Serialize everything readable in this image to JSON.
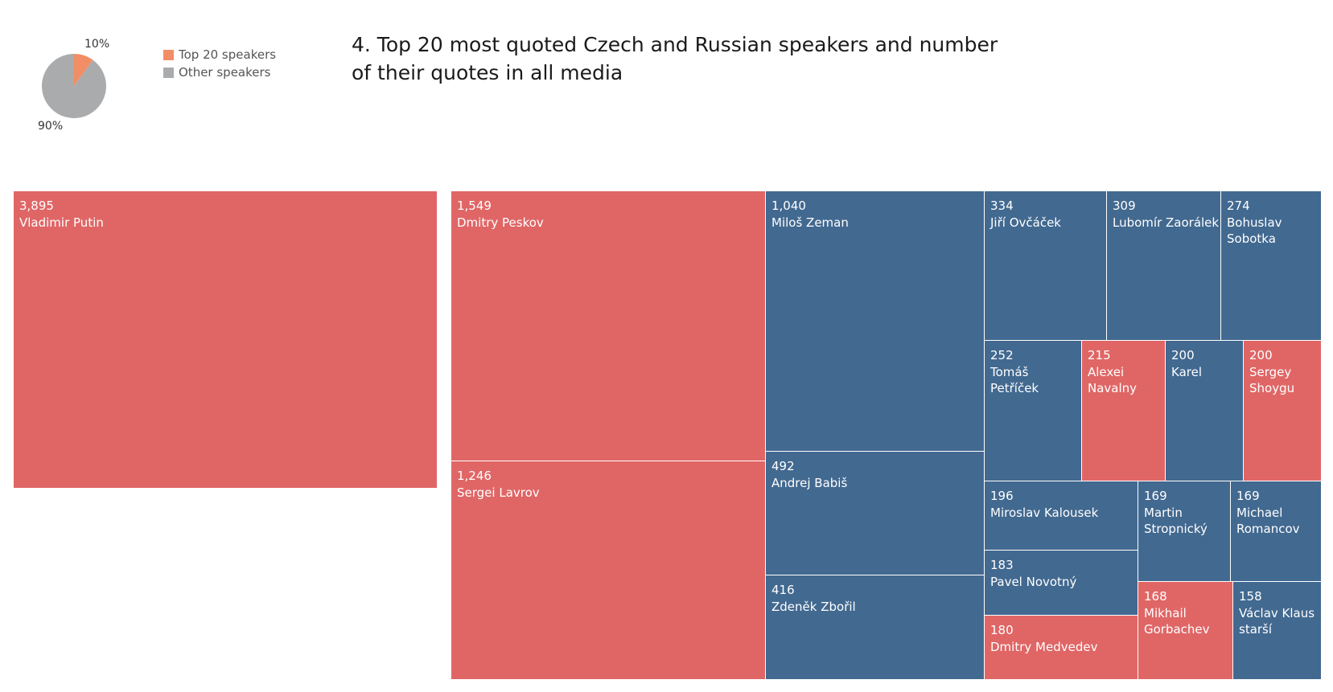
{
  "title": "4. Top 20 most quoted Czech and Russian speakers and number of their quotes in all media",
  "colors": {
    "russian": "#e06666",
    "czech": "#426990",
    "legend_top": "#f28e66",
    "legend_other": "#a9abad"
  },
  "pie": {
    "slices": [
      {
        "label": "10%",
        "value": 10,
        "color": "#f28e66"
      },
      {
        "label": "90%",
        "value": 90,
        "color": "#a9abad"
      }
    ]
  },
  "legend": [
    {
      "label": "Top 20 speakers",
      "color": "#f28e66"
    },
    {
      "label": "Other speakers",
      "color": "#a9abad"
    }
  ],
  "chart_data": [
    {
      "type": "pie",
      "categories": [
        "Top 20 speakers",
        "Other speakers"
      ],
      "values": [
        10,
        90
      ]
    },
    {
      "type": "treemap",
      "items": [
        {
          "value": "3,895",
          "name": "Vladimir Putin",
          "group": "russian"
        },
        {
          "value": "1,549",
          "name": "Dmitry Peskov",
          "group": "russian"
        },
        {
          "value": "1,246",
          "name": "Sergei Lavrov",
          "group": "russian"
        },
        {
          "value": "1,040",
          "name": "Miloš Zeman",
          "group": "czech"
        },
        {
          "value": "492",
          "name": "Andrej Babiš",
          "group": "czech"
        },
        {
          "value": "416",
          "name": "Zdeněk Zbořil",
          "group": "czech"
        },
        {
          "value": "334",
          "name": "Jiří Ovčáček",
          "group": "czech"
        },
        {
          "value": "309",
          "name": "Lubomír Zaorálek",
          "group": "czech"
        },
        {
          "value": "274",
          "name": "Bohuslav Sobotka",
          "group": "czech"
        },
        {
          "value": "252",
          "name": "Tomáš Petříček",
          "group": "czech"
        },
        {
          "value": "215",
          "name": "Alexei Navalny",
          "group": "russian"
        },
        {
          "value": "200",
          "name": "Karel",
          "group": "czech"
        },
        {
          "value": "200",
          "name": "Sergey Shoygu",
          "group": "russian"
        },
        {
          "value": "196",
          "name": "Miroslav Kalousek",
          "group": "czech"
        },
        {
          "value": "169",
          "name": "Martin Stropnický",
          "group": "czech"
        },
        {
          "value": "169",
          "name": "Michael Romancov",
          "group": "czech"
        },
        {
          "value": "183",
          "name": "Pavel Novotný",
          "group": "czech"
        },
        {
          "value": "180",
          "name": "Dmitry Medvedev",
          "group": "russian"
        },
        {
          "value": "168",
          "name": "Mikhail Gorbachev",
          "group": "russian"
        },
        {
          "value": "158",
          "name": "Václav Klaus starší",
          "group": "czech"
        }
      ]
    }
  ]
}
